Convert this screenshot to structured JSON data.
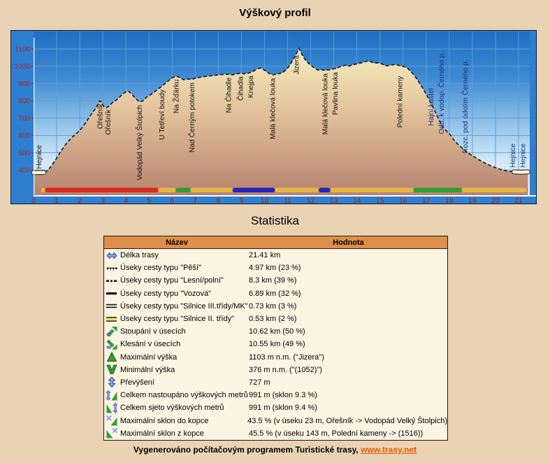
{
  "title": "Výškový profil",
  "stats_title": "Statistika",
  "footer": {
    "text": "Vygenerováno počítačovým programem Turistické trasy, ",
    "link": "www.trasy.net"
  },
  "chart_data": {
    "type": "area",
    "title": "Výškový profil",
    "x_unit": "km",
    "y_unit": "m",
    "x_range": [
      0,
      21.41
    ],
    "y_axis": {
      "min": 400,
      "max": 1100,
      "step": 100
    },
    "x_ticks": [
      0,
      1,
      2,
      3,
      4,
      5,
      6,
      7,
      8,
      9,
      10,
      11,
      12,
      13,
      14,
      15,
      16,
      17,
      18,
      19,
      20,
      21
    ],
    "y_ticks": [
      1100,
      1000,
      900,
      800,
      700,
      600,
      500,
      400
    ],
    "colors": {
      "sky_top": "#1e6ec3",
      "sky_bottom": "#eef8fe",
      "margin_blue": "#2e7fd0",
      "hill_top": "#f8f0be",
      "hill_bottom": "#b6836f",
      "grid": "#5b9fd8",
      "axis_text_y": "#b02424",
      "axis_text_x": "#a01f1f",
      "label_dark": "#111111",
      "label_navy": "#15317e",
      "seg_red": "#d62a1f",
      "seg_orange": "#e9b545",
      "seg_green": "#2f9e33",
      "seg_blue": "#2323bd",
      "highlight": "#ffffd8"
    },
    "profile": [
      [
        0,
        385
      ],
      [
        0.45,
        385
      ],
      [
        0.6,
        395
      ],
      [
        0.8,
        428
      ],
      [
        1.0,
        468
      ],
      [
        1.2,
        512
      ],
      [
        1.45,
        558
      ],
      [
        1.7,
        592
      ],
      [
        2.0,
        628
      ],
      [
        2.25,
        672
      ],
      [
        2.5,
        722
      ],
      [
        2.7,
        758
      ],
      [
        2.87,
        800
      ],
      [
        2.95,
        788
      ],
      [
        3.05,
        765
      ],
      [
        3.15,
        760
      ],
      [
        3.25,
        768
      ],
      [
        3.4,
        788
      ],
      [
        3.55,
        800
      ],
      [
        3.7,
        818
      ],
      [
        3.85,
        838
      ],
      [
        4.0,
        852
      ],
      [
        4.1,
        856
      ],
      [
        4.25,
        840
      ],
      [
        4.4,
        815
      ],
      [
        4.58,
        794
      ],
      [
        4.75,
        800
      ],
      [
        4.9,
        822
      ],
      [
        5.1,
        838
      ],
      [
        5.3,
        858
      ],
      [
        5.55,
        884
      ],
      [
        5.8,
        912
      ],
      [
        6.0,
        932
      ],
      [
        6.18,
        944
      ],
      [
        6.35,
        933
      ],
      [
        6.5,
        922
      ],
      [
        6.7,
        926
      ],
      [
        6.85,
        924
      ],
      [
        7.0,
        930
      ],
      [
        7.3,
        938
      ],
      [
        7.6,
        944
      ],
      [
        8.0,
        950
      ],
      [
        8.3,
        954
      ],
      [
        8.45,
        953
      ],
      [
        8.6,
        950
      ],
      [
        8.8,
        956
      ],
      [
        8.95,
        960
      ],
      [
        9.1,
        956
      ],
      [
        9.3,
        960
      ],
      [
        9.5,
        970
      ],
      [
        9.7,
        986
      ],
      [
        9.85,
        990
      ],
      [
        10.0,
        978
      ],
      [
        10.15,
        962
      ],
      [
        10.35,
        950
      ],
      [
        10.6,
        956
      ],
      [
        10.8,
        964
      ],
      [
        11.0,
        988
      ],
      [
        11.15,
        1018
      ],
      [
        11.3,
        1052
      ],
      [
        11.5,
        1103
      ],
      [
        11.62,
        1068
      ],
      [
        11.75,
        1040
      ],
      [
        11.9,
        1018
      ],
      [
        12.1,
        995
      ],
      [
        12.3,
        978
      ],
      [
        12.5,
        980
      ],
      [
        12.62,
        976
      ],
      [
        12.8,
        980
      ],
      [
        12.95,
        984
      ],
      [
        13.1,
        988
      ],
      [
        13.3,
        998
      ],
      [
        13.5,
        1006
      ],
      [
        13.65,
        1000
      ],
      [
        13.8,
        1008
      ],
      [
        14.0,
        1014
      ],
      [
        14.2,
        1020
      ],
      [
        14.45,
        1030
      ],
      [
        14.6,
        1026
      ],
      [
        14.75,
        1018
      ],
      [
        14.9,
        1020
      ],
      [
        15.1,
        1012
      ],
      [
        15.25,
        1002
      ],
      [
        15.45,
        1006
      ],
      [
        15.65,
        1010
      ],
      [
        15.85,
        1004
      ],
      [
        16.05,
        998
      ],
      [
        16.2,
        988
      ],
      [
        16.35,
        968
      ],
      [
        16.5,
        945
      ],
      [
        16.7,
        905
      ],
      [
        16.9,
        862
      ],
      [
        17.1,
        815
      ],
      [
        17.3,
        762
      ],
      [
        17.5,
        706
      ],
      [
        17.7,
        652
      ],
      [
        17.9,
        622
      ],
      [
        18.05,
        602
      ],
      [
        18.2,
        572
      ],
      [
        18.4,
        545
      ],
      [
        18.6,
        522
      ],
      [
        18.8,
        500
      ],
      [
        19.0,
        482
      ],
      [
        19.3,
        458
      ],
      [
        19.6,
        436
      ],
      [
        19.9,
        418
      ],
      [
        20.2,
        404
      ],
      [
        20.5,
        394
      ],
      [
        20.8,
        389
      ],
      [
        21.1,
        387
      ],
      [
        21.41,
        389
      ]
    ],
    "point_labels": [
      {
        "km": 0.22,
        "elev": 390,
        "dir": "up",
        "color": "dark",
        "text": "Hejnice"
      },
      {
        "km": 2.87,
        "elev": 800,
        "dir": "down",
        "color": "dark",
        "text": "Ořešník"
      },
      {
        "km": 3.22,
        "elev": 765,
        "dir": "down",
        "color": "dark",
        "text": "Ořešník"
      },
      {
        "km": 4.58,
        "elev": 792,
        "dir": "down",
        "color": "dark",
        "text": "Vodopád Velký Štolpich"
      },
      {
        "km": 5.55,
        "elev": 882,
        "dir": "down",
        "color": "dark",
        "text": "U Tetřeví boudy"
      },
      {
        "km": 6.18,
        "elev": 940,
        "dir": "down",
        "color": "dark",
        "text": "Na Žďárku"
      },
      {
        "km": 6.85,
        "elev": 922,
        "dir": "down",
        "color": "dark",
        "text": "Nad Černým potokem"
      },
      {
        "km": 8.45,
        "elev": 952,
        "dir": "down",
        "color": "dark",
        "text": "Na Čihadle"
      },
      {
        "km": 8.95,
        "elev": 958,
        "dir": "down",
        "color": "dark",
        "text": "Čihadla"
      },
      {
        "km": 9.4,
        "elev": 962,
        "dir": "down",
        "color": "dark",
        "text": "Knejpa"
      },
      {
        "km": 10.35,
        "elev": 948,
        "dir": "down",
        "color": "dark",
        "text": "Malá klečová louka"
      },
      {
        "km": 11.38,
        "elev": 1080,
        "dir": "down",
        "color": "dark",
        "text": "Jizera"
      },
      {
        "km": 12.62,
        "elev": 975,
        "dir": "down",
        "color": "dark",
        "text": "Malá klečová louka"
      },
      {
        "km": 13.05,
        "elev": 982,
        "dir": "down",
        "color": "dark",
        "text": "Pavlina louka"
      },
      {
        "km": 15.85,
        "elev": 960,
        "dir": "down",
        "color": "dark",
        "text": "Polední kameny"
      },
      {
        "km": 17.2,
        "elev": 640,
        "dir": "up",
        "color": "navy",
        "text": "Hajní kostel"
      },
      {
        "km": 17.65,
        "elev": 590,
        "dir": "up",
        "color": "navy",
        "text": "Odb. k vodop. Černého p."
      },
      {
        "km": 18.68,
        "elev": 480,
        "dir": "up",
        "color": "navy",
        "text": "Rozc. pod údolím Černého p."
      },
      {
        "km": 20.75,
        "elev": 398,
        "dir": "up",
        "color": "navy",
        "text": "Hejnice"
      },
      {
        "km": 21.18,
        "elev": 398,
        "dir": "up",
        "color": "navy",
        "text": "Hejnice"
      }
    ],
    "surface_segments": [
      {
        "from": 0.32,
        "to": 0.5,
        "color": "seg_orange"
      },
      {
        "from": 0.5,
        "to": 5.4,
        "color": "seg_red"
      },
      {
        "from": 5.4,
        "to": 6.15,
        "color": "seg_orange"
      },
      {
        "from": 6.15,
        "to": 6.8,
        "color": "seg_green"
      },
      {
        "from": 6.8,
        "to": 8.62,
        "color": "seg_orange"
      },
      {
        "from": 8.62,
        "to": 10.45,
        "color": "seg_blue"
      },
      {
        "from": 10.45,
        "to": 12.35,
        "color": "seg_orange"
      },
      {
        "from": 12.35,
        "to": 12.85,
        "color": "seg_blue"
      },
      {
        "from": 12.85,
        "to": 16.45,
        "color": "seg_orange"
      },
      {
        "from": 16.45,
        "to": 18.55,
        "color": "seg_green"
      },
      {
        "from": 18.55,
        "to": 21.35,
        "color": "seg_orange"
      }
    ],
    "road_highlights": [
      {
        "from": 0,
        "to": 0.52
      },
      {
        "from": 20.55,
        "to": 21.41
      }
    ]
  },
  "table": {
    "headers": [
      "Název",
      "Hodnota"
    ],
    "rows": [
      {
        "icon": "route-length",
        "name": "Délka trasy",
        "value": "21.41 km"
      },
      {
        "icon": "dotted-line",
        "name": "Úseky cesty typu \"Pěší\"",
        "value": "4.97 km (23 %)"
      },
      {
        "icon": "dash-dot-line",
        "name": "Úseky cesty typu \"Lesní/polní\"",
        "value": "8.3 km (39 %)"
      },
      {
        "icon": "solid-line",
        "name": "Úseky cesty typu \"Vozová\"",
        "value": "6.89 km (32 %)"
      },
      {
        "icon": "double-line",
        "name": "Úseky cesty typu \"Silnice III.třídy/MK\"",
        "value": "0.73 km (3 %)"
      },
      {
        "icon": "double-line-yellow",
        "name": "Úseky cesty typu \"Silnice II. třídy\"",
        "value": "0.53 km (2 %)"
      },
      {
        "icon": "ascending",
        "name": "Stoupání v úsecích",
        "value": "10.62 km (50 %)"
      },
      {
        "icon": "descending",
        "name": "Klesání v úsecích",
        "value": "10.55 km (49 %)"
      },
      {
        "icon": "peak",
        "name": "Maximální výška",
        "value": "1103 m n.m. (\"Jizera\")"
      },
      {
        "icon": "valley",
        "name": "Minimální výška",
        "value": "376 m n.m. (\"(1052)\")"
      },
      {
        "icon": "updown-arrow",
        "name": "Převýšení",
        "value": "727 m"
      },
      {
        "icon": "total-ascent",
        "name": "Celkem nastoupáno výškových metrů",
        "value": "991 m (sklon 9.3 %)"
      },
      {
        "icon": "total-descent",
        "name": "Celkem sjeto výškových metrů",
        "value": "991 m (sklon 9.4 %)"
      },
      {
        "icon": "max-slope-up",
        "name": "Maximální sklon do kopce",
        "value": "43.5 % (v úseku 23 m, Ořešník -> Vodopád Velký Štolpich)"
      },
      {
        "icon": "max-slope-down",
        "name": "Maximální sklon z kopce",
        "value": "45.5 % (v úseku 143 m, Polední kameny -> (1516))"
      }
    ]
  }
}
